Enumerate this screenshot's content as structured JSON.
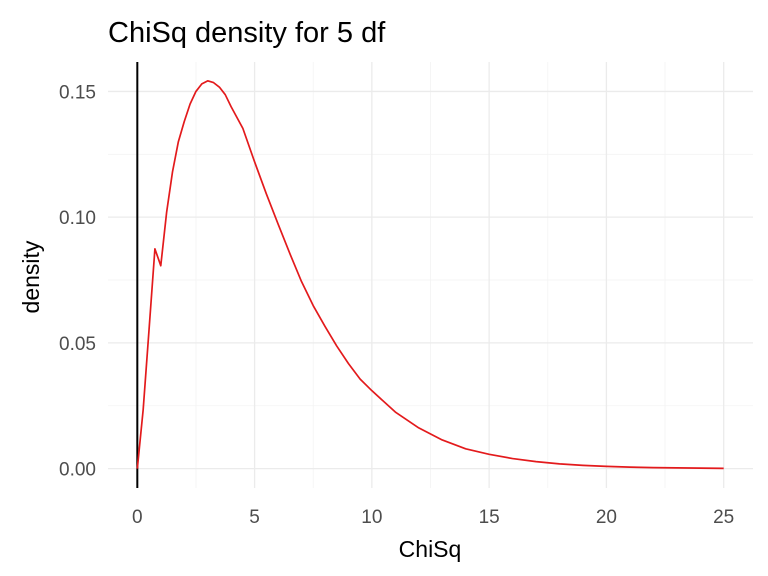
{
  "chart_data": {
    "type": "line",
    "title": "ChiSq density for 5 df",
    "xlabel": "ChiSq",
    "ylabel": "density",
    "xlim": [
      -1.25,
      26.25
    ],
    "ylim": [
      -0.0077,
      0.1617
    ],
    "x_ticks": [
      0,
      5,
      10,
      15,
      20,
      25
    ],
    "x_tick_labels": [
      "0",
      "5",
      "10",
      "15",
      "20",
      "25"
    ],
    "y_ticks": [
      0.0,
      0.05,
      0.1,
      0.15
    ],
    "y_tick_labels": [
      "0.00",
      "0.05",
      "0.10",
      "0.15"
    ],
    "grid": true,
    "vertical_reference_line_x": 0,
    "series": [
      {
        "color": "#e31a1c",
        "x": [
          0,
          0.25,
          0.5,
          0.75,
          1,
          1.25,
          1.5,
          1.75,
          2,
          2.25,
          2.5,
          2.75,
          3,
          3.25,
          3.5,
          3.75,
          4,
          4.5,
          5,
          5.5,
          6,
          6.5,
          7,
          7.5,
          8,
          8.5,
          9,
          9.5,
          10,
          11,
          12,
          13,
          14,
          15,
          16,
          17,
          18,
          19,
          20,
          21,
          22,
          23,
          24,
          25
        ],
        "y": [
          0.0,
          0.0235,
          0.0553,
          0.0874,
          0.0807,
          0.102,
          0.118,
          0.13,
          0.138,
          0.145,
          0.15,
          0.153,
          0.1542,
          0.1535,
          0.1517,
          0.1487,
          0.1439,
          0.1353,
          0.122,
          0.1093,
          0.0973,
          0.0856,
          0.0744,
          0.0648,
          0.0566,
          0.0488,
          0.0418,
          0.0356,
          0.031,
          0.0225,
          0.0162,
          0.0114,
          0.0079,
          0.0057,
          0.004,
          0.0028,
          0.0019,
          0.0013,
          0.0009,
          0.0006,
          0.0004,
          0.0003,
          0.0002,
          0.0001
        ]
      }
    ]
  }
}
